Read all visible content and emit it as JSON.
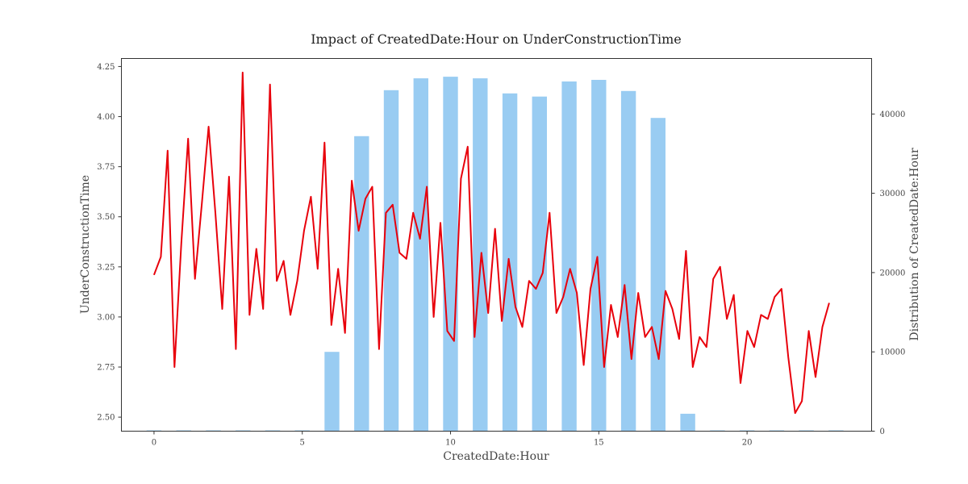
{
  "chart_data": {
    "type": "bar+line",
    "title": "Impact of CreatedDate:Hour on UnderConstructionTime",
    "xlabel": "CreatedDate:Hour",
    "ylabel_left": "UnderConstructionTime",
    "ylabel_right": "Distribution of CreatedDate:Hour",
    "xlim": [
      -1.1,
      24.2
    ],
    "ylim_left": [
      2.43,
      4.29
    ],
    "ylim_right": [
      0,
      47000
    ],
    "x_ticks": [
      0,
      5,
      10,
      15,
      20
    ],
    "y_ticks_left": [
      "2.50",
      "2.75",
      "3.00",
      "3.25",
      "3.50",
      "3.75",
      "4.00",
      "4.25"
    ],
    "y_ticks_right": [
      "0",
      "10000",
      "20000",
      "30000",
      "40000"
    ],
    "colors": {
      "bars": "#99ccf2",
      "line": "#e8000b",
      "frame": "#333333"
    },
    "bars": {
      "name": "Distribution of CreatedDate:Hour",
      "x": [
        0,
        1,
        2,
        3,
        4,
        5,
        6,
        7,
        8,
        9,
        10,
        11,
        12,
        13,
        14,
        15,
        16,
        17,
        18,
        19,
        20,
        21,
        22,
        23
      ],
      "values": [
        100,
        100,
        100,
        100,
        100,
        100,
        10000,
        37200,
        43000,
        44500,
        44700,
        44500,
        42600,
        42200,
        44100,
        44300,
        42900,
        39500,
        2200,
        100,
        100,
        100,
        100,
        100
      ]
    },
    "line": {
      "name": "UnderConstructionTime",
      "x": [
        0,
        0.23,
        0.46,
        0.69,
        0.92,
        1.15,
        1.38,
        1.61,
        1.84,
        2.07,
        2.3,
        2.53,
        2.76,
        2.99,
        3.22,
        3.45,
        3.68,
        3.91,
        4.14,
        4.37,
        4.6,
        4.83,
        5.06,
        5.29,
        5.52,
        5.75,
        5.98,
        6.21,
        6.44,
        6.67,
        6.9,
        7.13,
        7.36,
        7.59,
        7.82,
        8.05,
        8.28,
        8.51,
        8.74,
        8.97,
        9.2,
        9.43,
        9.66,
        9.89,
        10.12,
        10.35,
        10.58,
        10.81,
        11.04,
        11.27,
        11.5,
        11.73,
        11.96,
        12.19,
        12.42,
        12.65,
        12.88,
        13.11,
        13.34,
        13.57,
        13.8,
        14.03,
        14.26,
        14.49,
        14.72,
        14.95,
        15.18,
        15.41,
        15.64,
        15.87,
        16.1,
        16.33,
        16.56,
        16.79,
        17.02,
        17.25,
        17.48,
        17.71,
        17.94,
        18.17,
        18.4,
        18.63,
        18.86,
        19.09,
        19.32,
        19.55,
        19.78,
        20.01,
        20.24,
        20.47,
        20.7,
        20.93,
        21.16,
        21.39,
        21.62,
        21.85,
        22.08,
        22.31,
        22.54,
        22.77
      ],
      "values": [
        3.21,
        3.3,
        3.83,
        2.75,
        3.37,
        3.89,
        3.19,
        3.56,
        3.95,
        3.52,
        3.04,
        3.7,
        2.84,
        4.22,
        3.01,
        3.34,
        3.04,
        4.16,
        3.18,
        3.28,
        3.01,
        3.18,
        3.43,
        3.6,
        3.24,
        3.87,
        2.96,
        3.24,
        2.92,
        3.68,
        3.43,
        3.59,
        3.65,
        2.84,
        3.52,
        3.56,
        3.32,
        3.29,
        3.52,
        3.39,
        3.65,
        3.0,
        3.47,
        2.93,
        2.88,
        3.69,
        3.85,
        2.9,
        3.32,
        3.02,
        3.44,
        2.98,
        3.29,
        3.05,
        2.95,
        3.18,
        3.14,
        3.22,
        3.52,
        3.02,
        3.1,
        3.24,
        3.12,
        2.76,
        3.14,
        3.3,
        2.75,
        3.06,
        2.9,
        3.16,
        2.79,
        3.12,
        2.9,
        2.95,
        2.79,
        3.13,
        3.04,
        2.89,
        3.33,
        2.75,
        2.9,
        2.85,
        3.19,
        3.25,
        2.99,
        3.11,
        2.67,
        2.93,
        2.85,
        3.01,
        2.99,
        3.1,
        3.14,
        2.8,
        2.52,
        2.58,
        2.93,
        2.7,
        2.95,
        3.07
      ]
    }
  }
}
